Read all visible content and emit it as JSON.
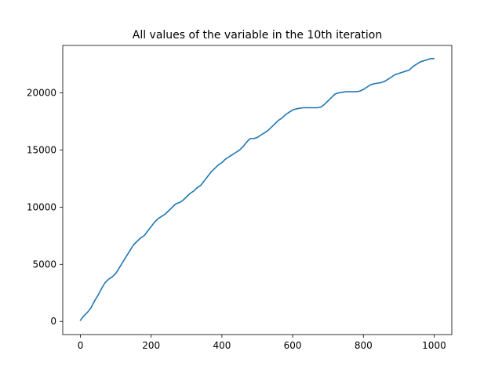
{
  "chart_data": {
    "type": "line",
    "title": "All values of the variable in the 10th iteration",
    "xlabel": "",
    "ylabel": "",
    "xlim": [
      -50,
      1050
    ],
    "ylim": [
      -1150,
      24150
    ],
    "xticks": [
      0,
      200,
      400,
      600,
      800,
      1000
    ],
    "xtick_labels": [
      "0",
      "200",
      "400",
      "600",
      "800",
      "1000"
    ],
    "yticks": [
      0,
      5000,
      10000,
      15000,
      20000
    ],
    "ytick_labels": [
      "0",
      "5000",
      "10000",
      "15000",
      "20000"
    ],
    "grid": false,
    "legend": "none",
    "series": [
      {
        "color": "#1f77b4",
        "x": [
          0,
          10,
          20,
          30,
          40,
          50,
          60,
          70,
          80,
          90,
          100,
          110,
          120,
          130,
          140,
          150,
          160,
          170,
          180,
          190,
          200,
          210,
          220,
          230,
          240,
          250,
          260,
          270,
          280,
          290,
          300,
          310,
          320,
          330,
          340,
          350,
          360,
          370,
          380,
          390,
          400,
          410,
          420,
          430,
          440,
          450,
          460,
          470,
          480,
          490,
          500,
          510,
          520,
          530,
          540,
          550,
          560,
          570,
          580,
          590,
          600,
          610,
          620,
          630,
          640,
          650,
          660,
          670,
          680,
          690,
          700,
          710,
          720,
          730,
          740,
          750,
          760,
          770,
          780,
          790,
          800,
          810,
          820,
          830,
          840,
          850,
          860,
          870,
          880,
          890,
          900,
          910,
          920,
          930,
          940,
          950,
          960,
          970,
          980,
          990,
          999
        ],
        "y": [
          100,
          500,
          800,
          1200,
          1800,
          2300,
          2900,
          3400,
          3700,
          3900,
          4200,
          4700,
          5200,
          5700,
          6200,
          6700,
          7000,
          7300,
          7500,
          7900,
          8300,
          8700,
          9000,
          9200,
          9400,
          9700,
          10000,
          10300,
          10400,
          10600,
          10900,
          11200,
          11400,
          11700,
          11900,
          12300,
          12700,
          13100,
          13400,
          13700,
          13900,
          14200,
          14400,
          14600,
          14800,
          15000,
          15300,
          15700,
          16000,
          16000,
          16100,
          16300,
          16500,
          16700,
          17000,
          17300,
          17600,
          17800,
          18100,
          18300,
          18500,
          18600,
          18650,
          18700,
          18700,
          18700,
          18700,
          18700,
          18750,
          19000,
          19300,
          19600,
          19900,
          20000,
          20050,
          20100,
          20100,
          20100,
          20100,
          20150,
          20300,
          20500,
          20700,
          20800,
          20850,
          20900,
          21000,
          21200,
          21400,
          21600,
          21700,
          21800,
          21900,
          22000,
          22300,
          22500,
          22700,
          22800,
          22900,
          23000,
          23000
        ]
      }
    ]
  }
}
